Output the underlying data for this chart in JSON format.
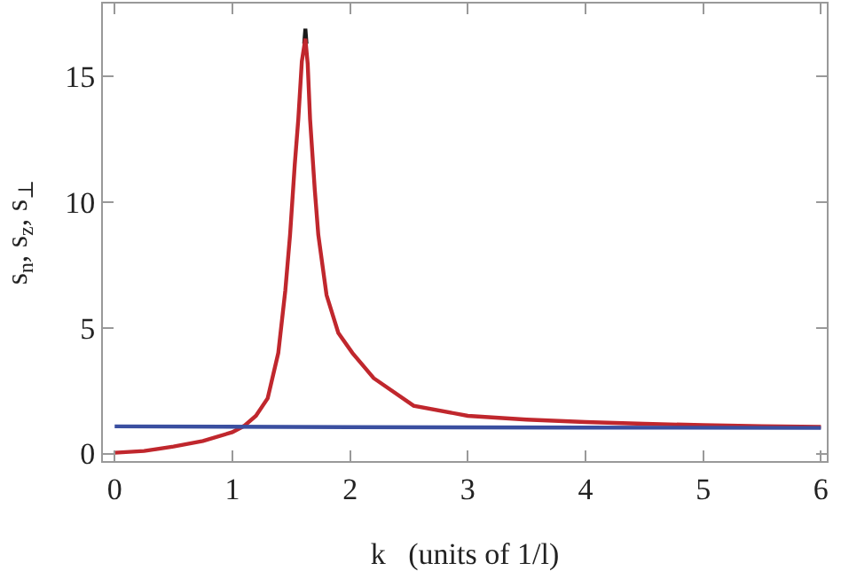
{
  "chart_data": {
    "type": "line",
    "xlabel": "k   (units of 1/l)",
    "ylabel": "s$_{n}$, s$_{z}$, s$_{⊥}$",
    "xlim": [
      -0.1,
      6.05
    ],
    "ylim": [
      -0.3,
      17.9
    ],
    "xticks": [
      0,
      1,
      2,
      3,
      4,
      5,
      6
    ],
    "yticks": [
      0,
      5,
      10,
      15
    ],
    "grid": false,
    "marker": "none",
    "line_style": "solid",
    "series": [
      {
        "color": "#1a1a1a",
        "x": [
          1.61,
          1.62,
          1.63
        ],
        "values": [
          16.3,
          16.9,
          16.3
        ]
      },
      {
        "color": "#c0272d",
        "x": [
          0,
          0.25,
          0.5,
          0.75,
          1,
          1.1,
          1.2,
          1.3,
          1.39,
          1.45,
          1.49,
          1.53,
          1.56,
          1.59,
          1.62,
          1.64,
          1.66,
          1.7,
          1.73,
          1.8,
          1.9,
          2.02,
          2.2,
          2.54,
          3,
          3.5,
          4,
          4.5,
          5,
          5.5,
          6
        ],
        "values": [
          0.03,
          0.1,
          0.28,
          0.5,
          0.85,
          1.1,
          1.5,
          2.2,
          4,
          6.5,
          8.7,
          11.5,
          13.3,
          15.6,
          16.5,
          15.5,
          13.3,
          10.5,
          8.7,
          6.3,
          4.8,
          4,
          3,
          1.9,
          1.5,
          1.35,
          1.25,
          1.18,
          1.13,
          1.09,
          1.06
        ]
      },
      {
        "color": "#3a4fa0",
        "x": [
          0,
          2,
          4,
          6
        ],
        "values": [
          1.08,
          1.05,
          1.03,
          1.02
        ]
      }
    ]
  }
}
